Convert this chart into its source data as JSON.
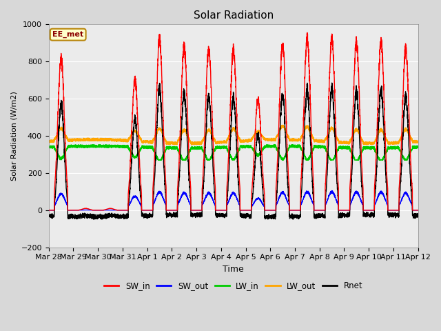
{
  "title": "Solar Radiation",
  "xlabel": "Time",
  "ylabel": "Solar Radiation (W/m2)",
  "ylim": [
    -200,
    1000
  ],
  "xlim": [
    0,
    360
  ],
  "x_tick_labels": [
    "Mar 28",
    "Mar 29",
    "Mar 30",
    "Mar 31",
    "Apr 1",
    "Apr 2",
    "Apr 3",
    "Apr 4",
    "Apr 5",
    "Apr 6",
    "Apr 7",
    "Apr 8",
    "Apr 9",
    "Apr 10",
    "Apr 11",
    "Apr 12"
  ],
  "x_tick_positions": [
    0,
    24,
    48,
    72,
    96,
    120,
    144,
    168,
    192,
    216,
    240,
    264,
    288,
    312,
    336,
    360
  ],
  "fig_facecolor": "#d8d8d8",
  "ax_facecolor": "#ebebeb",
  "legend_label": "EE_met",
  "series_colors": {
    "SW_in": "#ff0000",
    "SW_out": "#0000ff",
    "LW_in": "#00cc00",
    "LW_out": "#ffa500",
    "Rnet": "#000000"
  },
  "title_fontsize": 11,
  "n_days": 15,
  "SW_in_peaks": [
    850,
    10,
    10,
    730,
    950,
    910,
    900,
    900,
    620,
    930,
    960,
    960,
    940,
    940,
    900
  ],
  "LW_base": 340,
  "LW_out_base": 370,
  "night_rnet": -60
}
